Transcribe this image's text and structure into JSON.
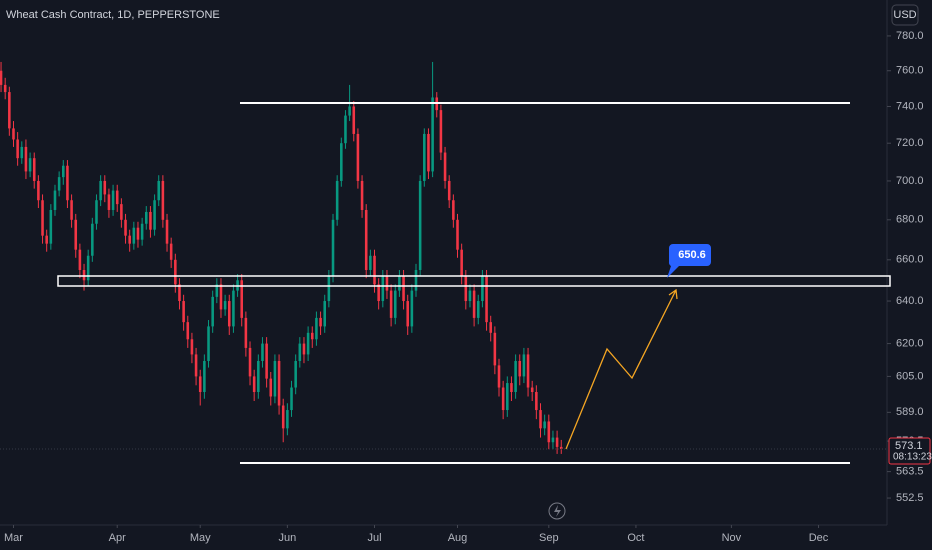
{
  "chart_data": {
    "type": "candlestick",
    "title": "Wheat Cash Contract, 1D, PEPPERSTONE",
    "currency": "USD",
    "up_color": "#089981",
    "down_color": "#f23645",
    "log_scale": true,
    "grid": false,
    "ylim": [
      541.5,
      801.2
    ],
    "yticks": [
      {
        "value": 780,
        "label": "780.0"
      },
      {
        "value": 760,
        "label": "760.0"
      },
      {
        "value": 740,
        "label": "740.0"
      },
      {
        "value": 720,
        "label": "720.0"
      },
      {
        "value": 700,
        "label": "700.0"
      },
      {
        "value": 680,
        "label": "680.0"
      },
      {
        "value": 660,
        "label": "660.0"
      },
      {
        "value": 640,
        "label": "640.0"
      },
      {
        "value": 620,
        "label": "620.0"
      },
      {
        "value": 605,
        "label": "605.0"
      },
      {
        "value": 589,
        "label": "589.0"
      },
      576.5,
      563.5,
      552.5
    ],
    "xlim": [
      -0.25,
      213.5
    ],
    "xticks": [
      {
        "value": 3,
        "label": "Mar"
      },
      {
        "value": 28,
        "label": "Apr"
      },
      {
        "value": 48,
        "label": "May"
      },
      {
        "value": 69,
        "label": "Jun"
      },
      {
        "value": 90,
        "label": "Jul"
      },
      {
        "value": 110,
        "label": "Aug"
      },
      {
        "value": 132,
        "label": "Sep"
      },
      {
        "value": 153,
        "label": "Oct"
      },
      {
        "value": 176,
        "label": "Nov"
      },
      {
        "value": 197,
        "label": "Dec"
      }
    ],
    "open": [
      760,
      752,
      748,
      728,
      722,
      712,
      718,
      705,
      712,
      700,
      690,
      672,
      668,
      685,
      695,
      702,
      708,
      690,
      680,
      665,
      655,
      650,
      662,
      678,
      690,
      700,
      693,
      685,
      695,
      688,
      680,
      672,
      668,
      676,
      670,
      678,
      684,
      675,
      690,
      700,
      680,
      668,
      660,
      648,
      640,
      630,
      622,
      615,
      605,
      598,
      612,
      628,
      642,
      648,
      636,
      640,
      628,
      645,
      650,
      632,
      618,
      605,
      598,
      612,
      620,
      604,
      596,
      612,
      592,
      582,
      590,
      600,
      612,
      620,
      615,
      625,
      622,
      632,
      628,
      640,
      652,
      680,
      700,
      720,
      735,
      740,
      725,
      700,
      685,
      655,
      662,
      648,
      640,
      652,
      645,
      632,
      645,
      652,
      640,
      628,
      645,
      655,
      700,
      725,
      705,
      745,
      738,
      715,
      700,
      690,
      680,
      665,
      652,
      640,
      645,
      632,
      640,
      652,
      630,
      625,
      610,
      600,
      590,
      602,
      598,
      612,
      605,
      615,
      600,
      598,
      590,
      582,
      585,
      576,
      578,
      574
    ],
    "high": [
      765,
      756,
      751,
      732,
      726,
      721,
      722,
      715,
      715,
      703,
      693,
      675,
      688,
      698,
      705,
      711,
      711,
      693,
      683,
      668,
      658,
      665,
      681,
      693,
      703,
      703,
      696,
      698,
      698,
      691,
      683,
      675,
      679,
      679,
      681,
      687,
      687,
      693,
      703,
      703,
      683,
      671,
      663,
      651,
      643,
      633,
      625,
      618,
      608,
      615,
      631,
      645,
      651,
      651,
      643,
      643,
      648,
      653,
      653,
      635,
      621,
      608,
      615,
      623,
      623,
      607,
      615,
      615,
      595,
      593,
      603,
      615,
      623,
      623,
      628,
      628,
      635,
      635,
      643,
      655,
      683,
      703,
      723,
      738,
      752,
      743,
      728,
      703,
      688,
      665,
      665,
      651,
      655,
      655,
      648,
      648,
      655,
      655,
      643,
      648,
      658,
      703,
      728,
      728,
      765,
      748,
      741,
      718,
      703,
      693,
      683,
      668,
      655,
      648,
      648,
      643,
      655,
      655,
      633,
      628,
      613,
      603,
      605,
      605,
      615,
      615,
      618,
      618,
      603,
      601,
      593,
      588,
      588,
      581,
      581,
      577
    ],
    "low": [
      748,
      744,
      724,
      718,
      708,
      709,
      701,
      702,
      696,
      686,
      668,
      664,
      665,
      682,
      692,
      698,
      686,
      676,
      661,
      651,
      645,
      647,
      659,
      675,
      687,
      689,
      681,
      682,
      684,
      676,
      668,
      664,
      665,
      666,
      667,
      675,
      671,
      672,
      687,
      676,
      664,
      656,
      644,
      636,
      626,
      618,
      611,
      601,
      592,
      595,
      609,
      625,
      639,
      632,
      633,
      624,
      625,
      642,
      628,
      614,
      601,
      594,
      595,
      609,
      600,
      592,
      593,
      588,
      576,
      579,
      587,
      597,
      609,
      611,
      612,
      618,
      619,
      624,
      625,
      637,
      649,
      677,
      697,
      717,
      732,
      721,
      696,
      681,
      651,
      652,
      644,
      636,
      637,
      641,
      628,
      629,
      642,
      636,
      624,
      625,
      642,
      652,
      697,
      701,
      702,
      734,
      711,
      696,
      686,
      676,
      661,
      648,
      636,
      637,
      628,
      629,
      637,
      626,
      621,
      606,
      596,
      586,
      587,
      594,
      595,
      601,
      602,
      596,
      594,
      586,
      578,
      579,
      573,
      573,
      571,
      571
    ],
    "close": [
      752,
      748,
      728,
      722,
      712,
      718,
      705,
      712,
      700,
      690,
      672,
      668,
      685,
      695,
      702,
      708,
      690,
      680,
      665,
      655,
      650,
      662,
      678,
      690,
      700,
      693,
      685,
      695,
      688,
      680,
      672,
      668,
      676,
      670,
      678,
      684,
      675,
      690,
      700,
      680,
      668,
      660,
      648,
      640,
      630,
      622,
      615,
      605,
      598,
      612,
      628,
      642,
      648,
      636,
      640,
      628,
      645,
      650,
      632,
      618,
      605,
      598,
      612,
      620,
      604,
      596,
      612,
      592,
      582,
      590,
      600,
      612,
      620,
      615,
      625,
      622,
      632,
      628,
      640,
      652,
      680,
      700,
      720,
      735,
      740,
      725,
      700,
      685,
      655,
      662,
      648,
      640,
      652,
      645,
      632,
      645,
      652,
      640,
      628,
      645,
      655,
      700,
      725,
      705,
      745,
      738,
      715,
      700,
      690,
      680,
      665,
      652,
      640,
      645,
      632,
      640,
      652,
      630,
      625,
      610,
      600,
      590,
      602,
      598,
      612,
      605,
      615,
      600,
      598,
      590,
      582,
      585,
      576,
      578,
      574,
      573.1
    ],
    "price_label": "573.1",
    "countdown": "08:13:23",
    "annotation": "650.6"
  }
}
